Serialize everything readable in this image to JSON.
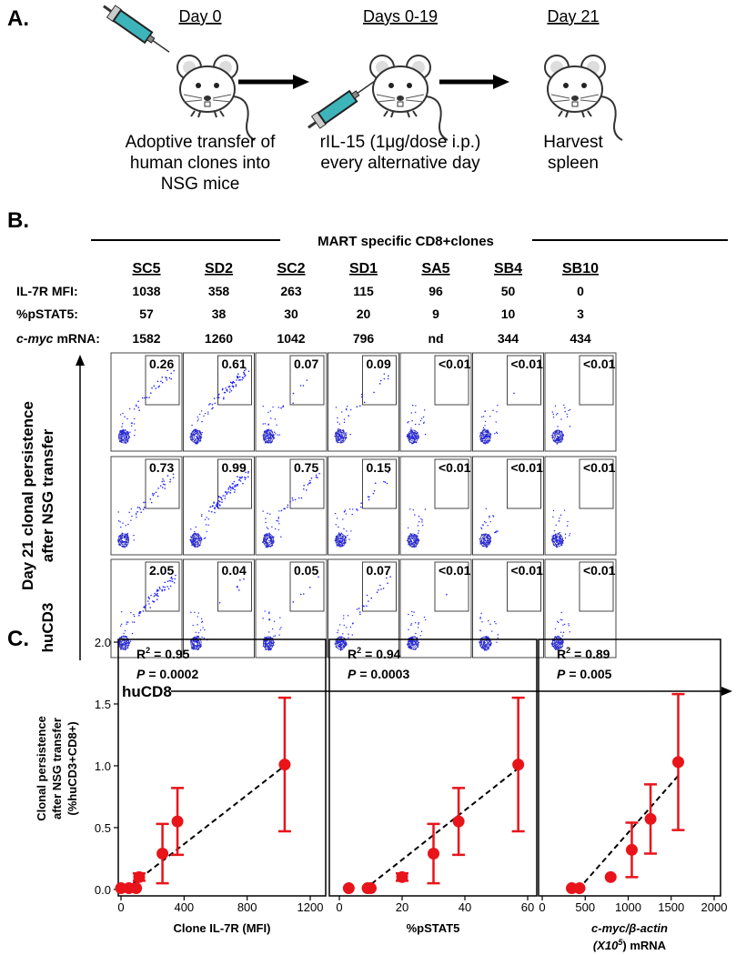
{
  "panel_a": {
    "label": "A.",
    "steps": [
      {
        "day": "Day 0",
        "caption": [
          "Adoptive transfer of",
          "human clones into",
          "NSG mice"
        ]
      },
      {
        "day": "Days 0-19",
        "caption": [
          "rIL-15 (1μg/dose i.p.)",
          "every alternative day"
        ]
      },
      {
        "day": "Day 21",
        "caption": [
          "Harvest",
          "spleen"
        ]
      }
    ]
  },
  "panel_b": {
    "label": "B.",
    "group_title": "MART specific CD8+clones",
    "clones": [
      "SC5",
      "SD2",
      "SC2",
      "SD1",
      "SA5",
      "SB4",
      "SB10"
    ],
    "rows": [
      {
        "label": [
          "IL-7R MFI:"
        ],
        "values": [
          1038,
          358,
          263,
          115,
          96,
          50,
          0
        ]
      },
      {
        "label": [
          "%pSTAT5:"
        ],
        "values": [
          57,
          38,
          30,
          20,
          9,
          10,
          3
        ]
      },
      {
        "label": [
          "c-myc",
          "mRNA:"
        ],
        "values": [
          1582,
          1260,
          1042,
          796,
          "nd",
          344,
          434
        ]
      }
    ],
    "plots": [
      [
        "0.26",
        "0.61",
        "0.07",
        "0.09",
        "<0.01",
        "<0.01",
        "<0.01"
      ],
      [
        "0.73",
        "0.99",
        "0.75",
        "0.15",
        "<0.01",
        "<0.01",
        "<0.01"
      ],
      [
        "2.05",
        "0.04",
        "0.05",
        "0.07",
        "<0.01",
        "<0.01",
        "<0.01"
      ]
    ],
    "y_axis_title": [
      "Day 21 clonal persistence",
      "after NSG transfer"
    ],
    "y_axis_label": "huCD3",
    "x_axis_label": "huCD8"
  },
  "panel_c_label": "C.",
  "chart_data": [
    {
      "type": "scatter",
      "ylabel": [
        "Clonal persistence",
        "after NSG transfer",
        "(%huCD3+CD8+)"
      ],
      "xlabel": [
        "Clone IL-7R (MFI)"
      ],
      "x": [
        1038,
        358,
        263,
        115,
        96,
        50,
        0
      ],
      "values": [
        1.01,
        0.55,
        0.29,
        0.1,
        0.01,
        0.01,
        0.01
      ],
      "errors": [
        0.54,
        0.27,
        0.24,
        0.03,
        0,
        0,
        0
      ],
      "color": "#e8141a",
      "xlim": [
        0,
        1200
      ],
      "xticks": [
        0,
        400,
        800,
        1200
      ],
      "ylim": [
        -0.03,
        2.0
      ],
      "yticks": [
        {
          "value": 0,
          "label": "0.0"
        },
        0.5,
        {
          "value": 1,
          "label": "1.0"
        },
        1.5,
        {
          "value": 2,
          "label": "2.0"
        }
      ],
      "trend": {
        "x": [
          30,
          1038
        ],
        "y": [
          0,
          1.0
        ]
      },
      "annotation": {
        "r2": [
          "R",
          "2",
          "= 0.95"
        ],
        "p": [
          "P",
          "= 0.0002"
        ]
      }
    },
    {
      "type": "scatter",
      "xlabel": [
        "%pSTAT5"
      ],
      "x": [
        57,
        38,
        30,
        20,
        10,
        9,
        3
      ],
      "values": [
        1.01,
        0.55,
        0.29,
        0.1,
        0.01,
        0.01,
        0.01
      ],
      "errors": [
        0.54,
        0.27,
        0.24,
        0.03,
        0,
        0,
        0
      ],
      "color": "#e8141a",
      "xlim": [
        0,
        60
      ],
      "xticks": [
        0,
        20,
        40,
        60
      ],
      "ylim": [
        -0.03,
        2.0
      ],
      "trend": {
        "x": [
          8,
          57
        ],
        "y": [
          0,
          0.98
        ]
      },
      "annotation": {
        "r2": [
          "R",
          "2",
          "= 0.94"
        ],
        "p": [
          "P",
          "= 0.0003"
        ]
      }
    },
    {
      "type": "scatter",
      "xlabel": [
        "c-myc/β-actin",
        "(X10",
        "5",
        ") mRNA"
      ],
      "x": [
        1582,
        1260,
        1042,
        796,
        344,
        434
      ],
      "values": [
        1.03,
        0.57,
        0.32,
        0.1,
        0.01,
        0.01
      ],
      "errors": [
        0.55,
        0.28,
        0.22,
        0,
        0,
        0
      ],
      "color": "#e8141a",
      "xlim": [
        0,
        2000
      ],
      "xticks": [
        0,
        500,
        1000,
        1500,
        2000
      ],
      "ylim": [
        -0.03,
        2.0
      ],
      "trend": {
        "x": [
          420,
          1582
        ],
        "y": [
          0,
          0.92
        ]
      },
      "annotation": {
        "r2": [
          "R",
          "2",
          "= 0.89"
        ],
        "p": [
          "P",
          "= 0.005"
        ]
      }
    }
  ]
}
